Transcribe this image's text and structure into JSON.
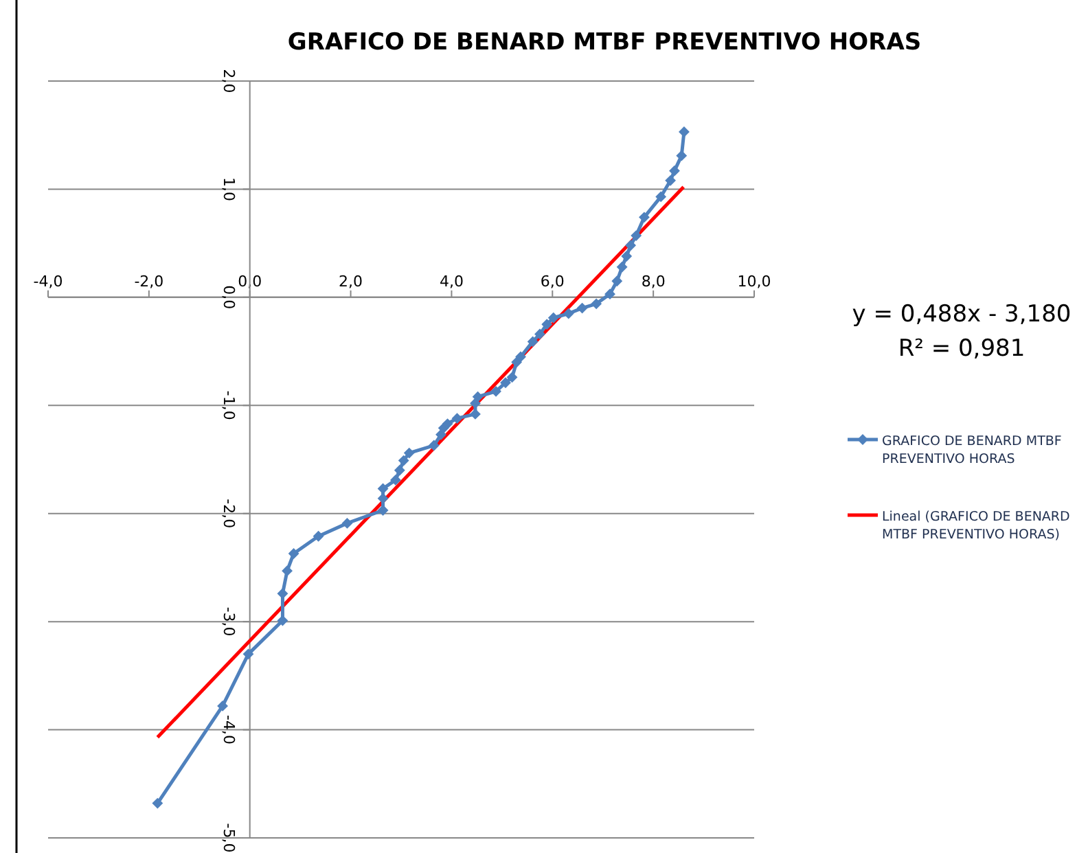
{
  "chart_data": {
    "type": "line",
    "title": "GRAFICO DE BENARD MTBF PREVENTIVO HORAS",
    "xlim": [
      -4,
      10
    ],
    "ylim": [
      -5,
      2
    ],
    "xticks": [
      {
        "value": -4,
        "label": "-4,0"
      },
      {
        "value": -2,
        "label": "-2,0"
      },
      {
        "value": 0,
        "label": "0,0"
      },
      {
        "value": 2,
        "label": "2,0"
      },
      {
        "value": 4,
        "label": "4,0"
      },
      {
        "value": 6,
        "label": "6,0"
      },
      {
        "value": 8,
        "label": "8,0"
      },
      {
        "value": 10,
        "label": "10,0"
      }
    ],
    "yticks": [
      {
        "value": -5,
        "label": "-5,0"
      },
      {
        "value": -4,
        "label": "-4,0"
      },
      {
        "value": -3,
        "label": "-3,0"
      },
      {
        "value": -2,
        "label": "-2,0"
      },
      {
        "value": -1,
        "label": "-1,0"
      },
      {
        "value": 0,
        "label": "0,0"
      },
      {
        "value": 1,
        "label": "1,0"
      },
      {
        "value": 2,
        "label": "2,0"
      }
    ],
    "grid": "y",
    "legend": "right",
    "series": [
      {
        "name": "GRAFICO DE BENARD MTBF PREVENTIVO HORAS",
        "color": "#4f81bd",
        "marker": "diamond",
        "x": [
          -1.83,
          -0.54,
          -0.03,
          0.65,
          0.65,
          0.74,
          0.87,
          1.36,
          1.93,
          2.64,
          2.64,
          2.64,
          2.89,
          2.97,
          3.05,
          3.16,
          3.65,
          3.79,
          3.84,
          3.92,
          4.11,
          4.47,
          4.47,
          4.52,
          4.88,
          5.07,
          5.2,
          5.29,
          5.37,
          5.61,
          5.75,
          5.89,
          6.02,
          6.32,
          6.59,
          6.87,
          7.14,
          7.28,
          7.38,
          7.47,
          7.55,
          7.66,
          7.82,
          8.15,
          8.34,
          8.42,
          8.56,
          8.61
        ],
        "values": [
          -4.68,
          -3.78,
          -3.3,
          -2.99,
          -2.74,
          -2.53,
          -2.37,
          -2.21,
          -2.09,
          -1.97,
          -1.86,
          -1.77,
          -1.69,
          -1.6,
          -1.51,
          -1.44,
          -1.37,
          -1.27,
          -1.21,
          -1.17,
          -1.12,
          -1.08,
          -0.98,
          -0.92,
          -0.87,
          -0.79,
          -0.74,
          -0.6,
          -0.55,
          -0.41,
          -0.34,
          -0.25,
          -0.19,
          -0.15,
          -0.1,
          -0.06,
          0.03,
          0.15,
          0.28,
          0.38,
          0.48,
          0.57,
          0.74,
          0.93,
          1.08,
          1.17,
          1.31,
          1.53
        ]
      },
      {
        "name": "Lineal (GRAFICO DE BENARD MTBF PREVENTIVO HORAS)",
        "color": "#ff0000",
        "marker": "none",
        "x": [
          -1.83,
          8.6
        ],
        "values": [
          -4.07,
          1.02
        ]
      }
    ],
    "annotations": [
      "y = 0,488x - 3,180",
      "R² = 0,981"
    ]
  }
}
